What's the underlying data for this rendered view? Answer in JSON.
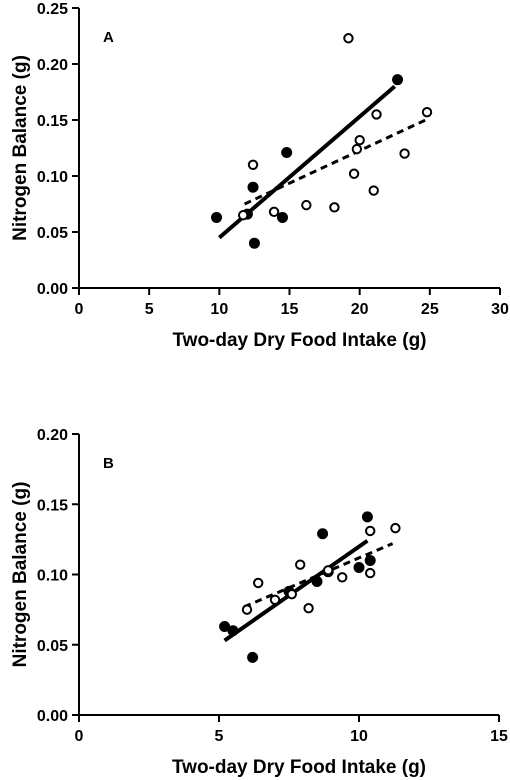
{
  "chart_data": [
    {
      "type": "scatter",
      "panel_label": "A",
      "xlabel": "Two-day Dry Food Intake (g)",
      "ylabel": "Nitrogen Balance (g)",
      "xlim": [
        0,
        30
      ],
      "ylim": [
        0,
        0.25
      ],
      "xticks": [
        "0",
        "5",
        "10",
        "15",
        "20",
        "25",
        "30"
      ],
      "yticks": [
        "0.00",
        "0.05",
        "0.10",
        "0.15",
        "0.20",
        "0.25"
      ],
      "grid": false,
      "series": [
        {
          "marker": "filled-circle",
          "line": "solid",
          "points": [
            [
              9.8,
              0.063
            ],
            [
              12.0,
              0.066
            ],
            [
              12.4,
              0.09
            ],
            [
              12.5,
              0.04
            ],
            [
              14.5,
              0.063
            ],
            [
              14.8,
              0.121
            ],
            [
              22.7,
              0.186
            ]
          ],
          "fit": [
            [
              10.0,
              0.045
            ],
            [
              22.5,
              0.18
            ]
          ]
        },
        {
          "marker": "open-circle",
          "line": "dashed",
          "points": [
            [
              11.7,
              0.065
            ],
            [
              12.4,
              0.11
            ],
            [
              13.9,
              0.068
            ],
            [
              16.2,
              0.074
            ],
            [
              18.2,
              0.072
            ],
            [
              19.2,
              0.223
            ],
            [
              19.6,
              0.102
            ],
            [
              19.8,
              0.124
            ],
            [
              20.0,
              0.132
            ],
            [
              21.0,
              0.087
            ],
            [
              21.2,
              0.155
            ],
            [
              23.2,
              0.12
            ],
            [
              24.8,
              0.157
            ]
          ],
          "fit": [
            [
              11.8,
              0.075
            ],
            [
              24.7,
              0.15
            ]
          ]
        }
      ]
    },
    {
      "type": "scatter",
      "panel_label": "B",
      "xlabel": "Two-day Dry Food Intake (g)",
      "ylabel": "Nitrogen Balance (g)",
      "xlim": [
        0,
        15
      ],
      "ylim": [
        0,
        0.2
      ],
      "xticks": [
        "0",
        "5",
        "10",
        "15"
      ],
      "yticks": [
        "0.00",
        "0.05",
        "0.10",
        "0.15",
        "0.20"
      ],
      "grid": false,
      "series": [
        {
          "marker": "filled-circle",
          "line": "solid",
          "points": [
            [
              5.2,
              0.063
            ],
            [
              5.5,
              0.06
            ],
            [
              6.2,
              0.041
            ],
            [
              7.5,
              0.088
            ],
            [
              8.5,
              0.095
            ],
            [
              8.7,
              0.129
            ],
            [
              8.9,
              0.102
            ],
            [
              10.0,
              0.105
            ],
            [
              10.3,
              0.141
            ],
            [
              10.4,
              0.11
            ]
          ],
          "fit": [
            [
              5.2,
              0.053
            ],
            [
              10.3,
              0.124
            ]
          ]
        },
        {
          "marker": "open-circle",
          "line": "dashed",
          "points": [
            [
              6.0,
              0.075
            ],
            [
              6.4,
              0.094
            ],
            [
              7.0,
              0.082
            ],
            [
              7.6,
              0.086
            ],
            [
              7.9,
              0.107
            ],
            [
              8.2,
              0.076
            ],
            [
              8.9,
              0.103
            ],
            [
              9.4,
              0.098
            ],
            [
              10.4,
              0.101
            ],
            [
              10.4,
              0.131
            ],
            [
              11.3,
              0.133
            ]
          ],
          "fit": [
            [
              5.9,
              0.077
            ],
            [
              11.2,
              0.122
            ]
          ]
        }
      ]
    }
  ]
}
